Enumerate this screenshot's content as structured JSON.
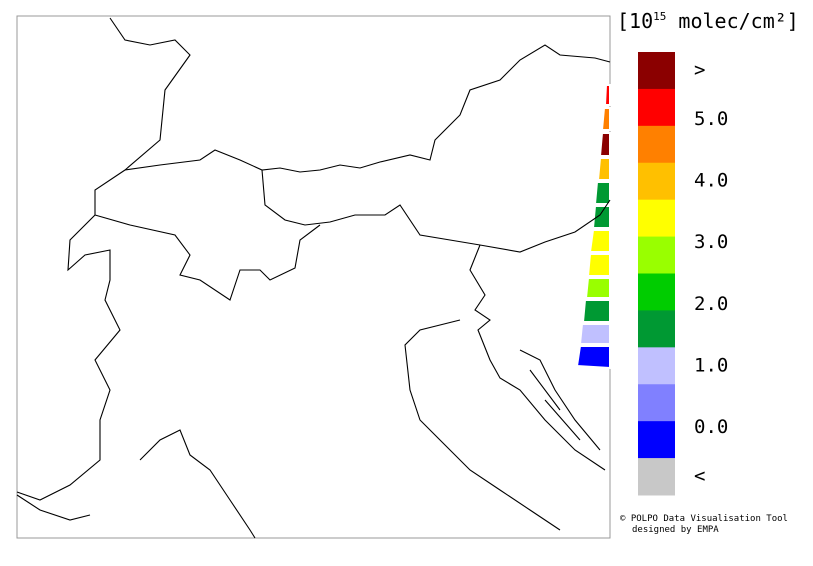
{
  "legend": {
    "unit": {
      "base": "[10",
      "exponent": "15",
      "rest": " molec/cm²]"
    },
    "colors": [
      "#8b0000",
      "#ff0000",
      "#ff8000",
      "#ffc000",
      "#ffff00",
      "#99ff00",
      "#00cc00",
      "#009933",
      "#c0c0ff",
      "#8080ff",
      "#0000ff",
      "#c8c8c8"
    ],
    "range": [
      -0.5,
      5.5
    ],
    "ticks": [
      {
        "value": 5,
        "label": "5.0"
      },
      {
        "value": 4,
        "label": "4.0"
      },
      {
        "value": 3,
        "label": "3.0"
      },
      {
        "value": 2,
        "label": "2.0"
      },
      {
        "value": 1,
        "label": "1.0"
      },
      {
        "value": 0,
        "label": "0.0"
      }
    ],
    "above_label": ">",
    "below_label": "<"
  },
  "credit": [
    "© POLPO Data Visualisation Tool",
    "designed by EMPA"
  ]
}
